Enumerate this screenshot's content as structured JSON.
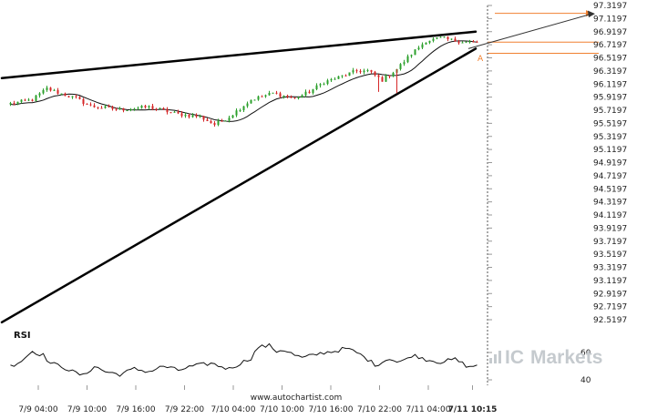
{
  "chart_data": {
    "type": "candlestick",
    "title": "",
    "price_axis": {
      "ticks": [
        "97.3197",
        "97.1197",
        "96.9197",
        "96.7197",
        "96.5197",
        "96.3197",
        "96.1197",
        "95.9197",
        "95.7197",
        "95.5197",
        "95.3197",
        "95.1197",
        "94.9197",
        "94.7197",
        "94.5197",
        "94.3197",
        "94.1197",
        "93.9197",
        "93.7197",
        "93.5197",
        "93.3197",
        "93.1197",
        "92.9197",
        "92.7197",
        "92.5197"
      ],
      "range": [
        92.45,
        97.35
      ]
    },
    "time_axis": {
      "ticks": [
        "7/9 04:00",
        "7/9 10:00",
        "7/9 16:00",
        "7/9 22:00",
        "7/10 04:00",
        "7/10 10:00",
        "7/10 16:00",
        "7/10 22:00",
        "7/11 04:00",
        "7/11 10:15"
      ],
      "highlight": "7/11 10:15"
    },
    "series_color_up": "#2ca02c",
    "series_color_down": "#d62728",
    "close_anchors": [
      [
        0,
        95.82
      ],
      [
        6,
        95.88
      ],
      [
        10,
        96.05
      ],
      [
        14,
        95.97
      ],
      [
        18,
        95.9
      ],
      [
        22,
        95.78
      ],
      [
        30,
        95.73
      ],
      [
        38,
        95.77
      ],
      [
        46,
        95.66
      ],
      [
        52,
        95.62
      ],
      [
        56,
        95.5
      ],
      [
        60,
        95.62
      ],
      [
        66,
        95.88
      ],
      [
        72,
        95.98
      ],
      [
        78,
        95.9
      ],
      [
        82,
        96.0
      ],
      [
        86,
        96.15
      ],
      [
        90,
        96.22
      ],
      [
        95,
        96.32
      ],
      [
        98,
        96.32
      ],
      [
        102,
        96.18
      ],
      [
        106,
        96.35
      ],
      [
        110,
        96.58
      ],
      [
        114,
        96.78
      ],
      [
        118,
        96.82
      ],
      [
        122,
        96.78
      ],
      [
        126,
        96.76
      ],
      [
        128,
        96.75
      ]
    ],
    "trendlines": [
      {
        "name": "resistance",
        "from": {
          "bar": -2,
          "price": 96.21
        },
        "to": {
          "bar": 128,
          "price": 96.92
        }
      },
      {
        "name": "support",
        "from": {
          "bar": -2,
          "price": 92.48
        },
        "to": {
          "bar": 128,
          "price": 96.66
        }
      }
    ],
    "levels": [
      96.76,
      96.59
    ],
    "target": {
      "price": 97.2,
      "label": ""
    },
    "breakout_marker": "A",
    "rsi": {
      "label": "RSI",
      "ticks": [
        "60",
        "40"
      ],
      "anchors": [
        [
          0,
          50
        ],
        [
          3,
          54
        ],
        [
          6,
          61
        ],
        [
          9,
          58
        ],
        [
          11,
          52
        ],
        [
          14,
          50
        ],
        [
          17,
          46
        ],
        [
          20,
          43
        ],
        [
          23,
          50
        ],
        [
          26,
          46
        ],
        [
          30,
          44
        ],
        [
          34,
          48
        ],
        [
          38,
          46
        ],
        [
          42,
          50
        ],
        [
          46,
          47
        ],
        [
          50,
          50
        ],
        [
          55,
          52
        ],
        [
          60,
          48
        ],
        [
          63,
          52
        ],
        [
          66,
          56
        ],
        [
          68,
          64
        ],
        [
          71,
          65
        ],
        [
          73,
          61
        ],
        [
          75,
          62
        ],
        [
          78,
          58
        ],
        [
          80,
          56
        ],
        [
          83,
          58
        ],
        [
          86,
          60
        ],
        [
          89,
          61
        ],
        [
          92,
          63
        ],
        [
          95,
          60
        ],
        [
          98,
          55
        ],
        [
          100,
          51
        ],
        [
          102,
          53
        ],
        [
          104,
          56
        ],
        [
          106,
          53
        ],
        [
          108,
          54
        ],
        [
          110,
          58
        ],
        [
          112,
          57
        ],
        [
          114,
          55
        ],
        [
          118,
          53
        ],
        [
          122,
          55
        ],
        [
          124,
          52
        ],
        [
          126,
          49
        ],
        [
          128,
          51
        ]
      ]
    }
  },
  "watermark": {
    "site": "www.autochartist.com",
    "brand_prefix": "IC",
    "brand_suffix": "Markets"
  }
}
